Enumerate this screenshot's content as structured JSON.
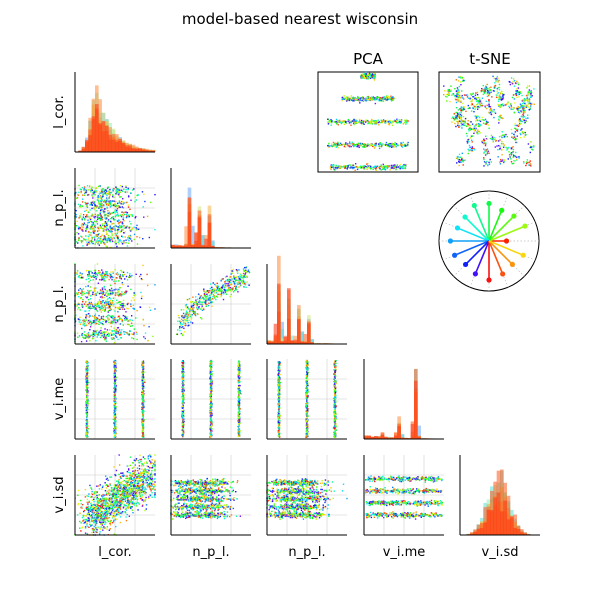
{
  "chart_data": {
    "type": "pairplot",
    "title": "model-based nearest wisconsin",
    "variables": [
      "l_cor.",
      "n_p_l.",
      "n_p_l.",
      "v_i.me",
      "v_i.sd"
    ],
    "projection_titles": {
      "pca": "PCA",
      "tsne": "t-SNE"
    },
    "palette": "rainbow",
    "grid": true,
    "colors": {
      "accent": "#ff3300",
      "highlight": "#ff2200"
    },
    "panels": {
      "hist_l_cor": {
        "type": "histogram",
        "bins": 24,
        "peak_bin": 6,
        "skew": "right"
      },
      "hist_n_p_l_1": {
        "type": "histogram",
        "bins": 24,
        "peak_bins": [
          5,
          8,
          11
        ]
      },
      "hist_n_p_l_2": {
        "type": "histogram",
        "bins": 24,
        "peak_bins": [
          3,
          6,
          9,
          12
        ]
      },
      "hist_v_i_me": {
        "type": "histogram",
        "bins": 24,
        "peak_bins": [
          5,
          10,
          15
        ],
        "peak_heights": [
          0.05,
          0.3,
          0.95
        ]
      },
      "hist_v_i_sd": {
        "type": "histogram",
        "bins": 24,
        "peak_bin": 11,
        "shape": "normal"
      },
      "pca_bands_y": [
        0.04,
        0.27,
        0.5,
        0.73,
        0.95
      ],
      "v_i_me_levels": [
        0.15,
        0.5,
        0.85
      ],
      "v_i_sd_levels": [
        0.25,
        0.4,
        0.55,
        0.7
      ]
    },
    "rose": {
      "spokes": 16,
      "highlighted_spoke": 0
    }
  }
}
